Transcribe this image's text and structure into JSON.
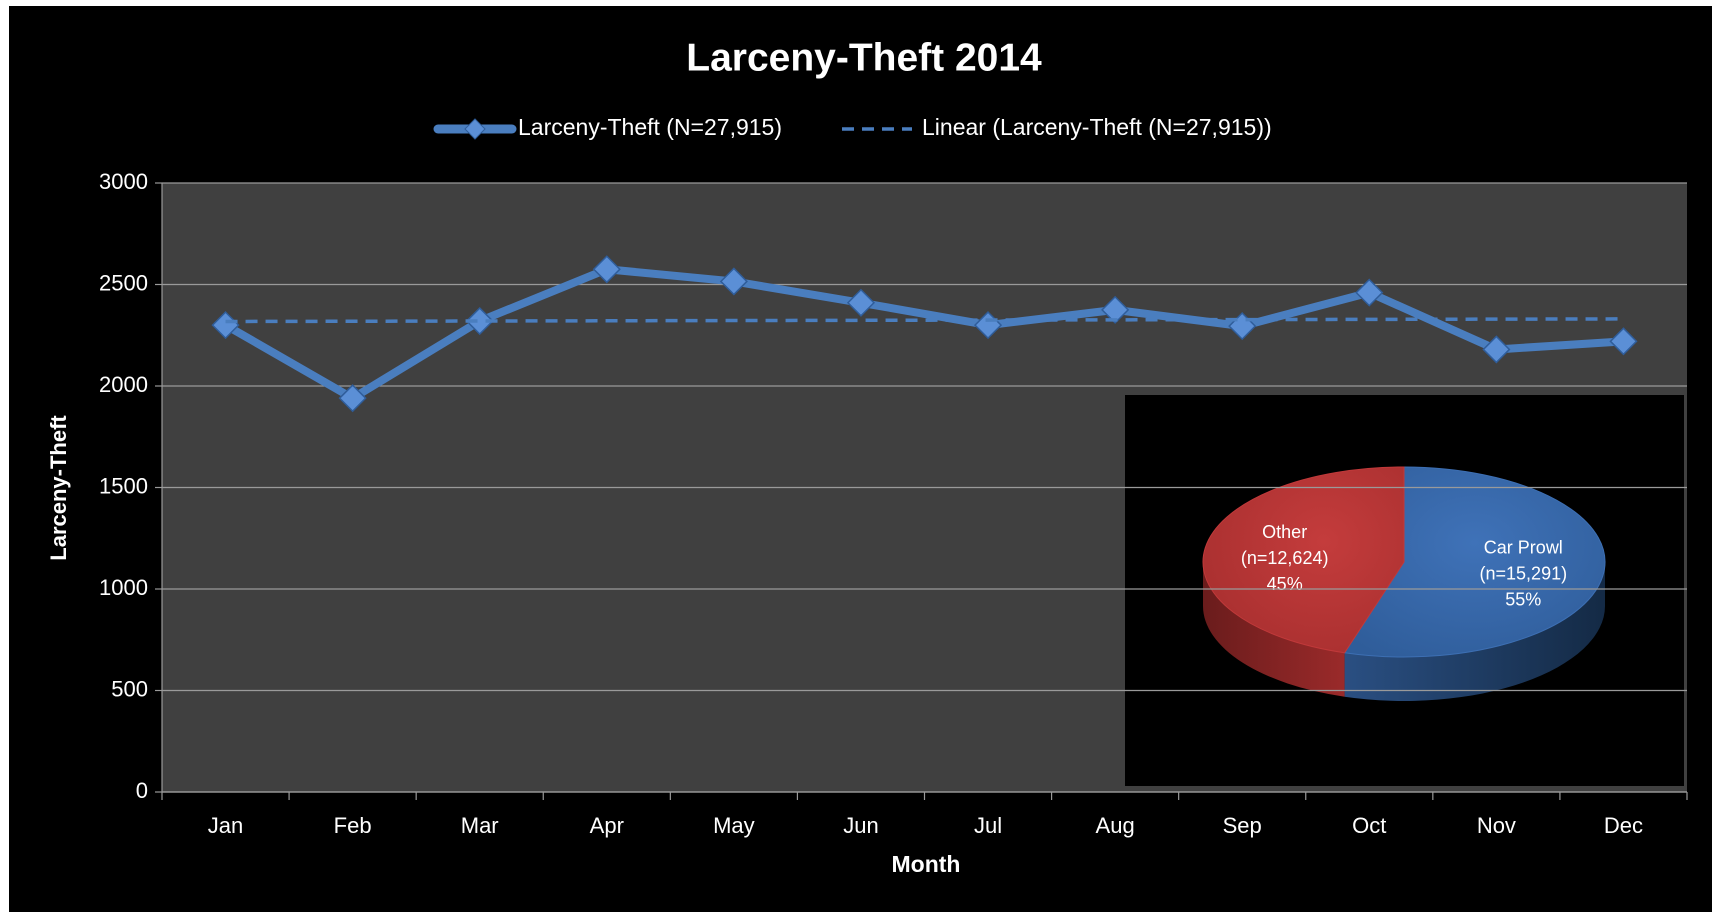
{
  "chart_data": [
    {
      "type": "line",
      "title": "Larceny-Theft 2014",
      "x_label": "Month",
      "y_label": "Larceny-Theft",
      "categories": [
        "Jan",
        "Feb",
        "Mar",
        "Apr",
        "May",
        "Jun",
        "Jul",
        "Aug",
        "Sep",
        "Oct",
        "Nov",
        "Dec"
      ],
      "series": [
        {
          "name": "Larceny-Theft (N=27,915)",
          "color": "#4a7ebf",
          "values": [
            2300,
            1940,
            2320,
            2575,
            2515,
            2410,
            2300,
            2375,
            2295,
            2460,
            2180,
            2220
          ]
        },
        {
          "name": "Linear (Larceny-Theft (N=27,915))",
          "color": "#4a7ebf",
          "trendline": "linear",
          "dashed": true
        }
      ],
      "ylim": [
        0,
        3000
      ],
      "yticks": [
        0,
        500,
        1000,
        1500,
        2000,
        2500,
        3000
      ],
      "grid": true,
      "legend": "top"
    },
    {
      "type": "pie",
      "categories": [
        "Car Prowl",
        "Other"
      ],
      "values": [
        15291,
        12624
      ],
      "value_labels": [
        "(n=15,291)",
        "(n=12,624)"
      ],
      "percents": [
        55,
        45
      ],
      "percent_labels": [
        "55%",
        "45%"
      ],
      "colors": [
        "#3d6fb3",
        "#c0393a"
      ]
    }
  ]
}
